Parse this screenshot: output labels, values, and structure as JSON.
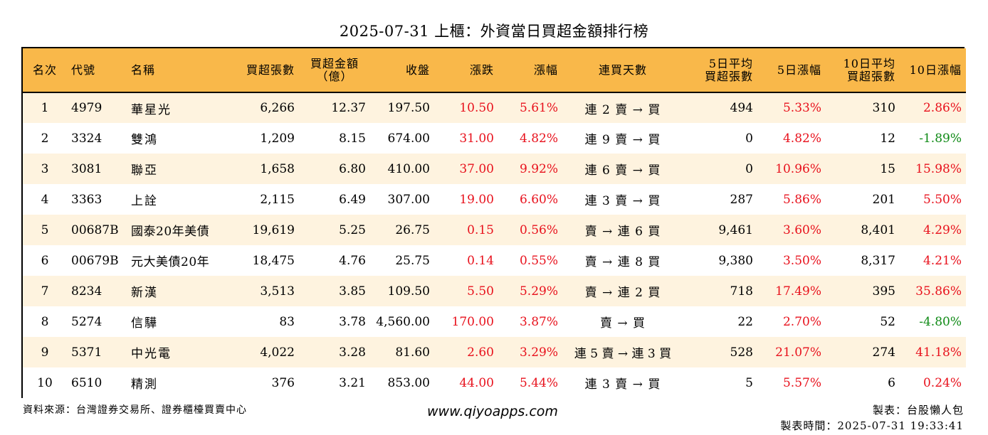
{
  "title": "2025-07-31 上櫃：外資當日買超金額排行榜",
  "headers": {
    "rank": "名次",
    "code": "代號",
    "name": "名稱",
    "net_buy_lots": "買超張數",
    "net_buy_amount_1": "買超金額",
    "net_buy_amount_2": "（億）",
    "close": "收盤",
    "change": "漲跌",
    "change_pct": "漲幅",
    "consecutive_days": "連買天數",
    "avg5_1": "5日平均",
    "avg5_2": "買超張數",
    "pct5": "5日漲幅",
    "avg10_1": "10日平均",
    "avg10_2": "買超張數",
    "pct10": "10日漲幅"
  },
  "rows": [
    {
      "rank": "1",
      "code": "4979",
      "name": "華星光",
      "lots": "6,266",
      "amount": "12.37",
      "close": "197.50",
      "change": "10.50",
      "change_pct": "5.61%",
      "days": "連 2 賣 → 買",
      "avg5": "494",
      "pct5": "5.33%",
      "avg10": "310",
      "pct10": "2.86%",
      "pct10_dir": "up"
    },
    {
      "rank": "2",
      "code": "3324",
      "name": "雙鴻",
      "lots": "1,209",
      "amount": "8.15",
      "close": "674.00",
      "change": "31.00",
      "change_pct": "4.82%",
      "days": "連 9 賣 → 買",
      "avg5": "0",
      "pct5": "4.82%",
      "avg10": "12",
      "pct10": "-1.89%",
      "pct10_dir": "down"
    },
    {
      "rank": "3",
      "code": "3081",
      "name": "聯亞",
      "lots": "1,658",
      "amount": "6.80",
      "close": "410.00",
      "change": "37.00",
      "change_pct": "9.92%",
      "days": "連 6 賣 → 買",
      "avg5": "0",
      "pct5": "10.96%",
      "avg10": "15",
      "pct10": "15.98%",
      "pct10_dir": "up"
    },
    {
      "rank": "4",
      "code": "3363",
      "name": "上詮",
      "lots": "2,115",
      "amount": "6.49",
      "close": "307.00",
      "change": "19.00",
      "change_pct": "6.60%",
      "days": "連 3 賣 → 買",
      "avg5": "287",
      "pct5": "5.86%",
      "avg10": "201",
      "pct10": "5.50%",
      "pct10_dir": "up"
    },
    {
      "rank": "5",
      "code": "00687B",
      "name": "國泰20年美債",
      "lots": "19,619",
      "amount": "5.25",
      "close": "26.75",
      "change": "0.15",
      "change_pct": "0.56%",
      "days": "賣 → 連 6 買",
      "avg5": "9,461",
      "pct5": "3.60%",
      "avg10": "8,401",
      "pct10": "4.29%",
      "pct10_dir": "up"
    },
    {
      "rank": "6",
      "code": "00679B",
      "name": "元大美債20年",
      "lots": "18,475",
      "amount": "4.76",
      "close": "25.75",
      "change": "0.14",
      "change_pct": "0.55%",
      "days": "賣 → 連 8 買",
      "avg5": "9,380",
      "pct5": "3.50%",
      "avg10": "8,317",
      "pct10": "4.21%",
      "pct10_dir": "up"
    },
    {
      "rank": "7",
      "code": "8234",
      "name": "新漢",
      "lots": "3,513",
      "amount": "3.85",
      "close": "109.50",
      "change": "5.50",
      "change_pct": "5.29%",
      "days": "賣 → 連 2 買",
      "avg5": "718",
      "pct5": "17.49%",
      "avg10": "395",
      "pct10": "35.86%",
      "pct10_dir": "up"
    },
    {
      "rank": "8",
      "code": "5274",
      "name": "信驊",
      "lots": "83",
      "amount": "3.78",
      "close": "4,560.00",
      "change": "170.00",
      "change_pct": "3.87%",
      "days": "賣 → 買",
      "avg5": "22",
      "pct5": "2.70%",
      "avg10": "52",
      "pct10": "-4.80%",
      "pct10_dir": "down"
    },
    {
      "rank": "9",
      "code": "5371",
      "name": "中光電",
      "lots": "4,022",
      "amount": "3.28",
      "close": "81.60",
      "change": "2.60",
      "change_pct": "3.29%",
      "days": "連 5 賣 → 連 3 買",
      "avg5": "528",
      "pct5": "21.07%",
      "avg10": "274",
      "pct10": "41.18%",
      "pct10_dir": "up"
    },
    {
      "rank": "10",
      "code": "6510",
      "name": "精測",
      "lots": "376",
      "amount": "3.21",
      "close": "853.00",
      "change": "44.00",
      "change_pct": "5.44%",
      "days": "連 3 賣 → 買",
      "avg5": "5",
      "pct5": "5.57%",
      "avg10": "6",
      "pct10": "0.24%",
      "pct10_dir": "up"
    }
  ],
  "colors": {
    "header_bg": "#f9b84a",
    "row_alt_bg": "#fef3df",
    "up": "#e8111c",
    "down": "#0f8a16"
  },
  "footer": {
    "source": "資料來源：台灣證券交易所、證券櫃檯買賣中心",
    "website": "www.qiyoapps.com",
    "maker": "製表：台股懶人包",
    "made_time": "製表時間：2025-07-31 19:33:41"
  }
}
